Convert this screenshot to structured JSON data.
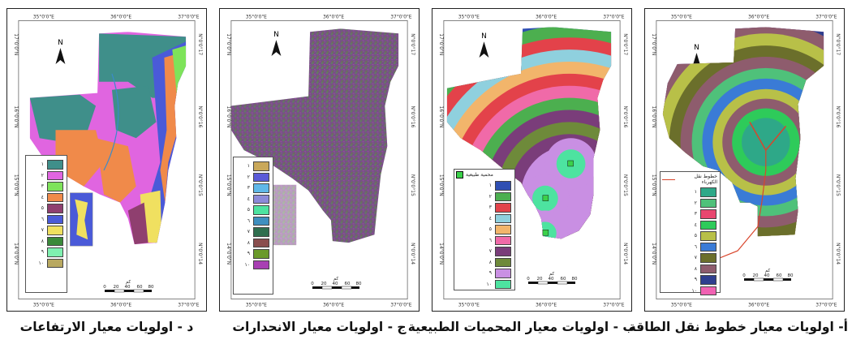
{
  "panels": [
    {
      "id": "a",
      "caption": "أ- اولويات معيار خطوط نقل الطاقة",
      "coords": {
        "top": [
          "35°0'0\"E",
          "36°0'0\"E",
          "37°0'0\"E"
        ],
        "left": [
          "17°0'0\"N",
          "16°0'0\"N",
          "15°0'0\"N",
          "14°0'0\"N"
        ],
        "right": [
          "N\"0'0°17",
          "N\"0'0°16",
          "N\"0'0°15",
          "N\"0'0°14"
        ]
      },
      "north": "N",
      "legend_title": "خطوط نقل الكهرباء",
      "legend_labels": [
        "١",
        "٢",
        "٣",
        "٤",
        "٥",
        "٦",
        "٧",
        "٨",
        "٩",
        "١٠"
      ],
      "legend_colors": [
        "#2ea888",
        "#4fc17a",
        "#e8466f",
        "#2ecb5a",
        "#b8c048",
        "#3a7bd6",
        "#6b6f2b",
        "#8e5c6d",
        "#2f3f8f",
        "#f062b3"
      ],
      "line_color": "#d9452b",
      "scale": {
        "unit": "كم",
        "ticks": [
          "0",
          "20",
          "40",
          "60",
          "80"
        ]
      }
    },
    {
      "id": "b",
      "caption": "ب - اولويات معيار المحميات الطبيعية",
      "coords": {
        "top": [
          "35°0'0\"E",
          "36°0'0\"E",
          "37°0'0\"E"
        ],
        "left": [
          "17°0'0\"N",
          "16°0'0\"N",
          "15°0'0\"N",
          "14°0'0\"N"
        ],
        "right": [
          "N\"0'0°17",
          "N\"0'0°16",
          "N\"0'0°15",
          "N\"0'0°14"
        ]
      },
      "north": "N",
      "legend_title": "محمية طبيعية",
      "legend_labels": [
        "١",
        "٢",
        "٣",
        "٤",
        "٥",
        "٦",
        "٧",
        "٨",
        "٩",
        "١٠"
      ],
      "legend_colors": [
        "#2f4fb3",
        "#4caf4f",
        "#e3424a",
        "#8fd0de",
        "#f2b56b",
        "#f06aa8",
        "#7a3d7a",
        "#6e8a3a",
        "#c98fe3",
        "#4de3a0"
      ],
      "reserve_color": "#3bd14a",
      "scale": {
        "unit": "كم",
        "ticks": [
          "0",
          "20",
          "40",
          "60",
          "80"
        ]
      }
    },
    {
      "id": "c",
      "caption": "ج - اولويات معيار الانحدارات",
      "coords": {
        "top": [
          "35°0'0\"E",
          "36°0'0\"E",
          "37°0'0\"E"
        ],
        "left": [
          "17°0'0\"N",
          "16°0'0\"N",
          "15°0'0\"N",
          "14°0'0\"N"
        ],
        "right": [
          "N\"0'0°17",
          "N\"0'0°16",
          "N\"0'0°15",
          "N\"0'0°14"
        ]
      },
      "north": "N",
      "legend_labels": [
        "١",
        "٢",
        "٣",
        "٤",
        "٥",
        "٦",
        "٧",
        "٨",
        "٩",
        "١٠"
      ],
      "legend_colors": [
        "#c9a85a",
        "#5a5ad8",
        "#5fb8e8",
        "#8c8ad8",
        "#4de3a0",
        "#3f8fbf",
        "#2f6f4f",
        "#8a4e4e",
        "#6a9a2a",
        "#a83fb3"
      ],
      "scale": {
        "unit": "كم",
        "ticks": [
          "0",
          "20",
          "40",
          "60",
          "80"
        ]
      }
    },
    {
      "id": "d",
      "caption": "د - اولويات معيار الارتفاعات",
      "coords": {
        "top": [
          "35°0'0\"E",
          "36°0'0\"E",
          "37°0'0\"E"
        ],
        "left": [
          "17°0'0\"N",
          "16°0'0\"N",
          "15°0'0\"N",
          "14°0'0\"N"
        ],
        "right": [
          "N\"0'0°17",
          "N\"0'0°16",
          "N\"0'0°15",
          "N\"0'0°14"
        ]
      },
      "north": "N",
      "legend_labels": [
        "١",
        "٢",
        "٣",
        "٤",
        "٥",
        "٦",
        "٧",
        "٨",
        "٩",
        "١٠"
      ],
      "legend_colors": [
        "#3f8f8a",
        "#e065e0",
        "#7ee35a",
        "#f08a4a",
        "#8f3f6f",
        "#4a5ad8",
        "#f0e060",
        "#3a8a3a",
        "#7ff0b0",
        "#b8a860"
      ],
      "scale": {
        "unit": "كم",
        "ticks": [
          "0",
          "20",
          "40",
          "60",
          "80"
        ]
      }
    }
  ]
}
